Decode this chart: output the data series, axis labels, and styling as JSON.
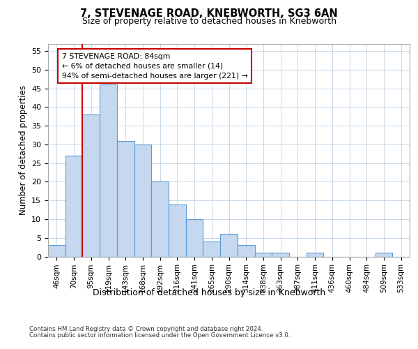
{
  "title_line1": "7, STEVENAGE ROAD, KNEBWORTH, SG3 6AN",
  "title_line2": "Size of property relative to detached houses in Knebworth",
  "xlabel": "Distribution of detached houses by size in Knebworth",
  "ylabel": "Number of detached properties",
  "categories": [
    "46sqm",
    "70sqm",
    "95sqm",
    "119sqm",
    "143sqm",
    "168sqm",
    "192sqm",
    "216sqm",
    "241sqm",
    "265sqm",
    "290sqm",
    "314sqm",
    "338sqm",
    "363sqm",
    "387sqm",
    "411sqm",
    "436sqm",
    "460sqm",
    "484sqm",
    "509sqm",
    "533sqm"
  ],
  "values": [
    3,
    27,
    38,
    46,
    31,
    30,
    20,
    14,
    10,
    4,
    6,
    3,
    1,
    1,
    0,
    1,
    0,
    0,
    0,
    1,
    0
  ],
  "bar_color": "#c5d8f0",
  "bar_edge_color": "#5b9bd5",
  "ylim": [
    0,
    57
  ],
  "yticks": [
    0,
    5,
    10,
    15,
    20,
    25,
    30,
    35,
    40,
    45,
    50,
    55
  ],
  "vline_x": 1.5,
  "vline_color": "#cc0000",
  "annotation_line1": "7 STEVENAGE ROAD: 84sqm",
  "annotation_line2": "← 6% of detached houses are smaller (14)",
  "annotation_line3": "94% of semi-detached houses are larger (221) →",
  "footer_line1": "Contains HM Land Registry data © Crown copyright and database right 2024.",
  "footer_line2": "Contains public sector information licensed under the Open Government Licence v3.0.",
  "background_color": "#ffffff",
  "grid_color": "#c8d8e8"
}
